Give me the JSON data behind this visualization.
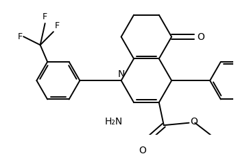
{
  "bg_color": "#ffffff",
  "lc": "#000000",
  "lw": 1.4,
  "figsize": [
    3.63,
    2.24
  ],
  "dpi": 100,
  "xlim": [
    0,
    363
  ],
  "ylim": [
    0,
    224
  ]
}
